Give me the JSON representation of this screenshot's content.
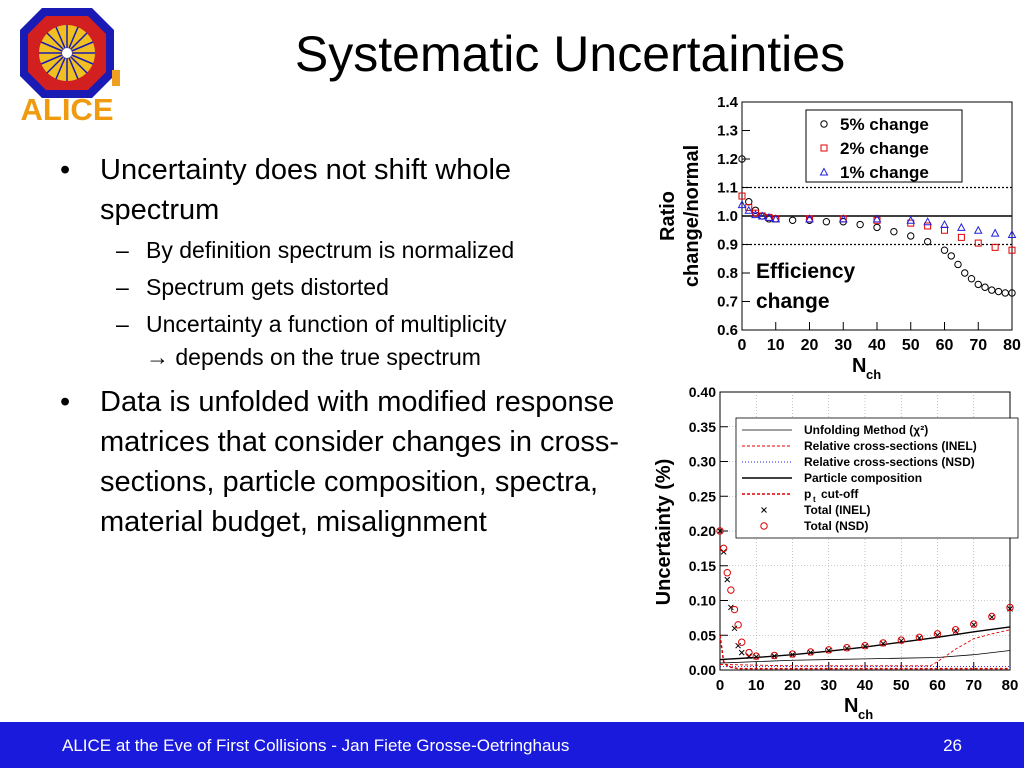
{
  "logo": {
    "text": "ALICE"
  },
  "slide": {
    "title": "Systematic Uncertainties"
  },
  "bullets": [
    {
      "text": "Uncertainty does not shift whole spectrum",
      "subs": [
        {
          "line1": "By definition spectrum is normalized",
          "line2": ""
        },
        {
          "line1": "Spectrum gets distorted",
          "line2": ""
        },
        {
          "line1": "Uncertainty a function of multiplicity",
          "line2": "→ depends on the true spectrum"
        }
      ]
    },
    {
      "text": "Data is unfolded with modified response matrices that consider changes in cross-sections, particle composition, spectra, material budget, misalignment",
      "subs": []
    }
  ],
  "footer": {
    "text": "ALICE at the Eve of First Collisions  - Jan Fiete Grosse-Oetringhaus",
    "page": "26"
  },
  "chart_data": [
    {
      "type": "scatter",
      "ylabel_line1": "Ratio",
      "ylabel_line2": "change/normal",
      "xlabel": "N",
      "xlabel_sub": "ch",
      "xlim": [
        0,
        80
      ],
      "ylim": [
        0.6,
        1.4
      ],
      "xticks": [
        "0",
        "10",
        "20",
        "30",
        "40",
        "50",
        "60",
        "70",
        "80"
      ],
      "yticks": [
        "0.6",
        "0.7",
        "0.8",
        "0.9",
        "1.0",
        "1.1",
        "1.2",
        "1.3",
        "1.4"
      ],
      "annotation_line1": "Efficiency",
      "annotation_line2": "change",
      "reference_lines": [
        0.9,
        1.0,
        1.1
      ],
      "legend_position": "top-right",
      "series": [
        {
          "name": "5% change",
          "color": "#000000",
          "marker": "circle",
          "x": [
            0,
            2,
            4,
            6,
            8,
            10,
            15,
            20,
            25,
            30,
            35,
            40,
            45,
            50,
            55,
            60,
            62,
            64,
            66,
            68,
            70,
            72,
            74,
            76,
            78,
            80
          ],
          "y": [
            1.2,
            1.05,
            1.02,
            1.0,
            0.99,
            0.99,
            0.985,
            0.985,
            0.98,
            0.98,
            0.97,
            0.96,
            0.945,
            0.93,
            0.91,
            0.88,
            0.86,
            0.83,
            0.8,
            0.78,
            0.76,
            0.75,
            0.74,
            0.735,
            0.73,
            0.73
          ]
        },
        {
          "name": "2% change",
          "color": "#e00000",
          "marker": "square",
          "x": [
            0,
            2,
            4,
            6,
            8,
            10,
            20,
            30,
            40,
            50,
            55,
            60,
            65,
            70,
            75,
            80
          ],
          "y": [
            1.07,
            1.03,
            1.01,
            1.0,
            0.995,
            0.99,
            0.99,
            0.99,
            0.985,
            0.975,
            0.965,
            0.95,
            0.925,
            0.905,
            0.89,
            0.88
          ]
        },
        {
          "name": "1% change",
          "color": "#2020e0",
          "marker": "triangle",
          "x": [
            0,
            2,
            4,
            6,
            8,
            10,
            20,
            30,
            40,
            50,
            55,
            60,
            65,
            70,
            75,
            80
          ],
          "y": [
            1.04,
            1.02,
            1.005,
            1.0,
            0.995,
            0.99,
            0.99,
            0.99,
            0.99,
            0.985,
            0.98,
            0.97,
            0.96,
            0.95,
            0.94,
            0.935
          ]
        }
      ]
    },
    {
      "type": "line",
      "ylabel": "Uncertainty (%)",
      "xlabel": "N",
      "xlabel_sub": "ch",
      "xlim": [
        0,
        80
      ],
      "ylim": [
        0,
        0.4
      ],
      "xticks": [
        "0",
        "10",
        "20",
        "30",
        "40",
        "50",
        "60",
        "70",
        "80"
      ],
      "yticks": [
        "0.00",
        "0.05",
        "0.10",
        "0.15",
        "0.20",
        "0.25",
        "0.30",
        "0.35",
        "0.40"
      ],
      "grid": true,
      "legend_position": "top-right",
      "series": [
        {
          "name": "Unfolding Method (χ²)",
          "color": "#000000",
          "style": "thin",
          "x": [
            0,
            10,
            20,
            30,
            40,
            50,
            60,
            70,
            80
          ],
          "y": [
            0.01,
            0.012,
            0.014,
            0.015,
            0.016,
            0.017,
            0.018,
            0.022,
            0.028
          ]
        },
        {
          "name": "Relative cross-sections (INEL)",
          "color": "#e00000",
          "style": "dashed",
          "x": [
            0,
            10,
            20,
            30,
            40,
            50,
            58,
            60,
            65,
            70,
            75,
            80
          ],
          "y": [
            0.008,
            0.007,
            0.006,
            0.006,
            0.006,
            0.006,
            0.006,
            0.012,
            0.03,
            0.045,
            0.052,
            0.058
          ]
        },
        {
          "name": "Relative cross-sections (NSD)",
          "color": "#2020e0",
          "style": "dotted",
          "x": [
            0,
            10,
            20,
            30,
            40,
            50,
            60,
            70,
            80
          ],
          "y": [
            0.005,
            0.005,
            0.005,
            0.005,
            0.005,
            0.005,
            0.005,
            0.005,
            0.005
          ]
        },
        {
          "name": "Particle composition",
          "color": "#000000",
          "style": "solid",
          "x": [
            0,
            10,
            20,
            30,
            40,
            50,
            60,
            70,
            80
          ],
          "y": [
            0.015,
            0.018,
            0.022,
            0.027,
            0.033,
            0.04,
            0.047,
            0.055,
            0.062
          ]
        },
        {
          "name": "p cut-off",
          "name_sub": "t",
          "color": "#e00000",
          "style": "dashed-thick",
          "x": [
            0,
            1,
            2,
            3,
            4,
            5,
            10,
            20,
            30,
            40,
            50,
            60,
            70,
            80
          ],
          "y": [
            0.05,
            0.012,
            0.006,
            0.004,
            0.003,
            0.002,
            0.002,
            0.002,
            0.002,
            0.002,
            0.002,
            0.002,
            0.002,
            0.002
          ]
        },
        {
          "name": "Total (INEL)",
          "color": "#000000",
          "marker": "cross",
          "x": [
            0,
            1,
            2,
            3,
            4,
            5,
            6,
            8,
            10,
            15,
            20,
            25,
            30,
            35,
            40,
            45,
            50,
            55,
            60,
            65,
            70,
            75,
            80
          ],
          "y": [
            0.2,
            0.17,
            0.13,
            0.09,
            0.06,
            0.035,
            0.025,
            0.02,
            0.019,
            0.02,
            0.022,
            0.025,
            0.028,
            0.031,
            0.034,
            0.038,
            0.042,
            0.046,
            0.05,
            0.056,
            0.065,
            0.076,
            0.088
          ]
        },
        {
          "name": "Total (NSD)",
          "color": "#e00000",
          "marker": "circle",
          "x": [
            0,
            1,
            2,
            3,
            4,
            5,
            6,
            8,
            10,
            15,
            20,
            25,
            30,
            35,
            40,
            45,
            50,
            55,
            60,
            65,
            70,
            75,
            80
          ],
          "y": [
            0.2,
            0.175,
            0.14,
            0.115,
            0.087,
            0.065,
            0.04,
            0.025,
            0.02,
            0.021,
            0.023,
            0.026,
            0.029,
            0.032,
            0.035,
            0.039,
            0.043,
            0.047,
            0.052,
            0.058,
            0.066,
            0.077,
            0.09
          ]
        }
      ]
    }
  ]
}
